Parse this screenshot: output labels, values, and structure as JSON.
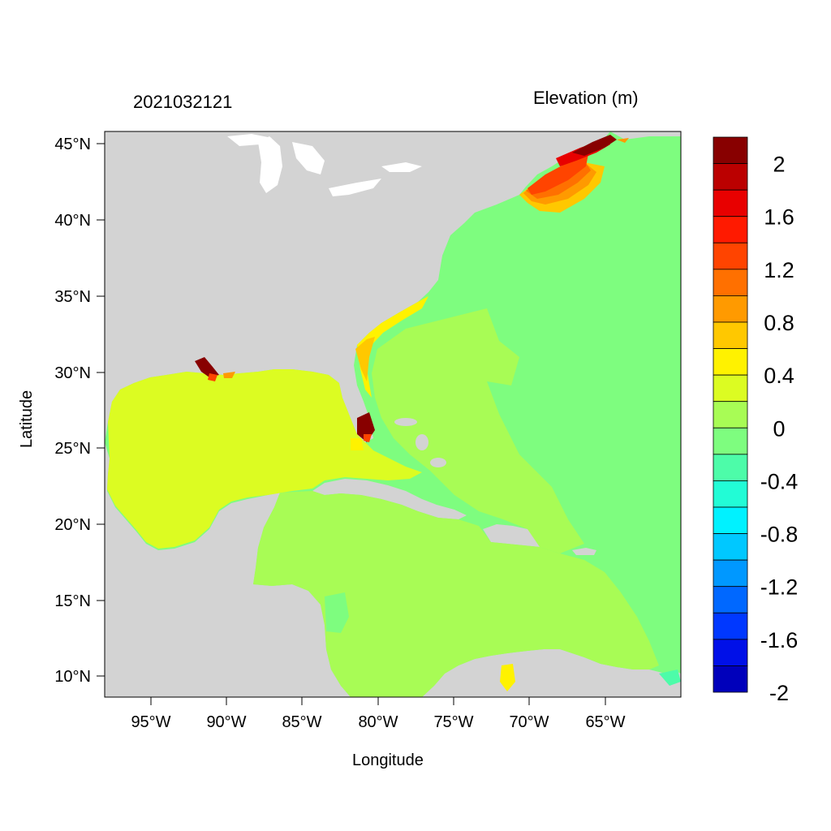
{
  "header": {
    "left_title": "2021032121",
    "right_title": "Elevation (m)"
  },
  "axes": {
    "xlabel": "Longitude",
    "ylabel": "Latitude",
    "xticks": [
      "95°W",
      "90°W",
      "85°W",
      "80°W",
      "75°W",
      "70°W",
      "65°W"
    ],
    "yticks": [
      "45°N",
      "40°N",
      "35°N",
      "30°N",
      "25°N",
      "20°N",
      "15°N",
      "10°N"
    ]
  },
  "colorbar": {
    "labels": [
      "2",
      "1.6",
      "1.2",
      "0.8",
      "0.4",
      "0",
      "-0.4",
      "-0.8",
      "-1.2",
      "-1.6",
      "-2"
    ],
    "colors": [
      "#880000",
      "#bb0000",
      "#e80000",
      "#ff1a00",
      "#ff4400",
      "#ff7000",
      "#ff9a00",
      "#ffc800",
      "#fff200",
      "#dcfc22",
      "#a8fc55",
      "#7efd7f",
      "#4dfca9",
      "#22fcd6",
      "#00f2ff",
      "#00c8ff",
      "#0098ff",
      "#0068ff",
      "#0038ff",
      "#0010e8",
      "#0000bb"
    ]
  },
  "map_colors": {
    "land": "#d3d3d3",
    "atlantic": "#7efd7f",
    "caribbean": "#a8fc55",
    "gulf": "#dcfc22"
  }
}
